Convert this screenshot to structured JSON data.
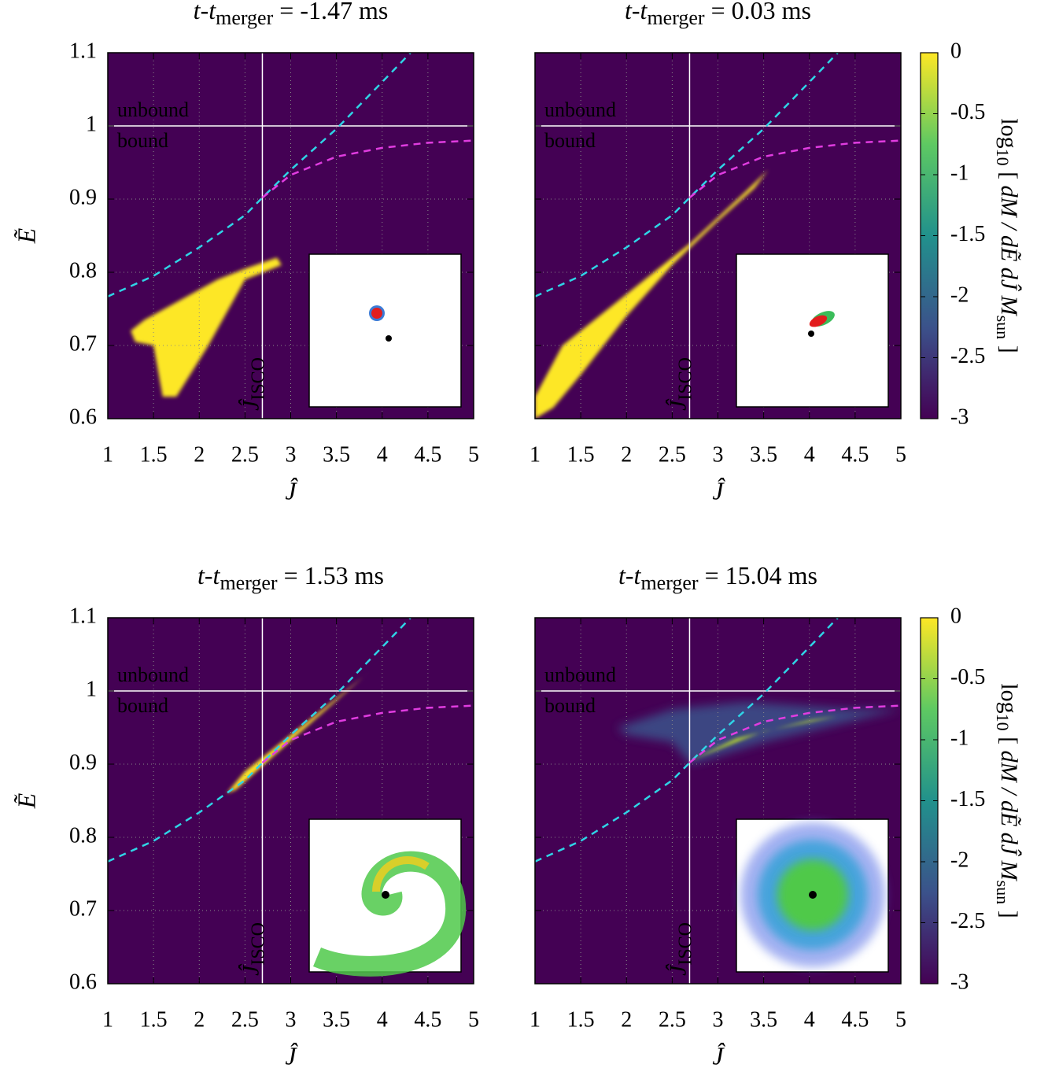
{
  "chart_data": [
    {
      "type": "heatmap",
      "title": [
        "t-t",
        "merger",
        " = -1.47 ms"
      ],
      "xlabel": "Ĵ",
      "ylabel": "Ẽ",
      "xlim": [
        1,
        5
      ],
      "ylim": [
        0.6,
        1.1
      ],
      "xticks": [
        1,
        1.5,
        2,
        2.5,
        3,
        3.5,
        4,
        4.5,
        5
      ],
      "yticks": [
        0.6,
        0.7,
        0.8,
        0.9,
        1,
        1.1
      ],
      "ytick_labels": true,
      "grid": true,
      "background": "#440154",
      "isco": 2.69,
      "isco_label": [
        "Ĵ",
        "ISCO"
      ],
      "unbound_level": 1,
      "unbound_label": "unbound",
      "bound_label": "bound",
      "series": [
        {
          "color": "#2fd4e6",
          "x": [
            1,
            1.5,
            2,
            2.5,
            2.69,
            3,
            3.5,
            4,
            4.31
          ],
          "values": [
            0.767,
            0.795,
            0.834,
            0.878,
            0.902,
            0.94,
            0.996,
            1.06,
            1.1
          ]
        },
        {
          "color": "#e03ce0",
          "x": [
            2.69,
            3,
            3.5,
            4,
            4.5,
            5
          ],
          "values": [
            0.902,
            0.933,
            0.958,
            0.97,
            0.977,
            0.98
          ]
        }
      ],
      "regions": [
        {
          "color": "#fde725",
          "x": [
            1.25,
            1.4,
            2.2,
            2.5,
            2.85,
            2.9,
            2.5,
            2.1,
            1.75,
            1.6,
            1.5,
            1.3
          ],
          "y": [
            0.72,
            0.735,
            0.79,
            0.805,
            0.82,
            0.81,
            0.79,
            0.7,
            0.63,
            0.63,
            0.7,
            0.705
          ]
        }
      ]
    },
    {
      "type": "heatmap",
      "title": [
        "t-t",
        "merger",
        " = 0.03 ms"
      ],
      "xlabel": "Ĵ",
      "xlim": [
        1,
        5
      ],
      "ylim": [
        0.6,
        1.1
      ],
      "xticks": [
        1,
        1.5,
        2,
        2.5,
        3,
        3.5,
        4,
        4.5,
        5
      ],
      "yticks": [
        0.6,
        0.7,
        0.8,
        0.9,
        1,
        1.1
      ],
      "ytick_labels": false,
      "grid": true,
      "background": "#440154",
      "isco": 2.69,
      "isco_label": [
        "Ĵ",
        "ISCO"
      ],
      "unbound_level": 1,
      "unbound_label": "unbound",
      "bound_label": "bound",
      "series": [
        {
          "color": "#2fd4e6",
          "x": [
            1,
            1.5,
            2,
            2.5,
            2.69,
            3,
            3.5,
            4,
            4.31
          ],
          "values": [
            0.767,
            0.795,
            0.834,
            0.878,
            0.902,
            0.94,
            0.996,
            1.06,
            1.1
          ]
        },
        {
          "color": "#e03ce0",
          "x": [
            2.69,
            3,
            3.5,
            4,
            4.5,
            5
          ],
          "values": [
            0.902,
            0.933,
            0.958,
            0.97,
            0.977,
            0.98
          ]
        }
      ],
      "regions": [
        {
          "color": "#fde725",
          "x": [
            1,
            1,
            1.3,
            2,
            2.7,
            3.3,
            3.55,
            3.4,
            3,
            2.5,
            2,
            1.5,
            1.2
          ],
          "y": [
            0.6,
            0.63,
            0.7,
            0.77,
            0.84,
            0.91,
            0.94,
            0.915,
            0.87,
            0.81,
            0.74,
            0.66,
            0.615
          ]
        }
      ],
      "colorbar": {
        "clim": [
          -3,
          0
        ],
        "cticks": [
          0,
          -0.5,
          -1,
          -1.5,
          -2,
          -2.5,
          -3
        ],
        "label": [
          "log",
          "10",
          " [ ",
          "dM / dẼ dĴ M",
          "sun",
          " ]"
        ],
        "colormap": [
          "#440154",
          "#3b528b",
          "#21918c",
          "#5ec962",
          "#fde725"
        ]
      }
    },
    {
      "type": "heatmap",
      "title": [
        "t-t",
        "merger",
        " = 1.53 ms"
      ],
      "xlabel": "Ĵ",
      "ylabel": "Ẽ",
      "xlim": [
        1,
        5
      ],
      "ylim": [
        0.6,
        1.1
      ],
      "xticks": [
        1,
        1.5,
        2,
        2.5,
        3,
        3.5,
        4,
        4.5,
        5
      ],
      "yticks": [
        0.6,
        0.7,
        0.8,
        0.9,
        1,
        1.1
      ],
      "ytick_labels": true,
      "grid": true,
      "background": "#440154",
      "isco": 2.69,
      "isco_label": [
        "Ĵ",
        "ISCO"
      ],
      "unbound_level": 1,
      "unbound_label": "unbound",
      "bound_label": "bound",
      "series": [
        {
          "color": "#2fd4e6",
          "x": [
            1,
            1.5,
            2,
            2.5,
            2.69,
            3,
            3.5,
            4,
            4.31
          ],
          "values": [
            0.767,
            0.795,
            0.834,
            0.878,
            0.902,
            0.94,
            0.996,
            1.06,
            1.1
          ]
        },
        {
          "color": "#e03ce0",
          "x": [
            2.69,
            3,
            3.5,
            4,
            4.5,
            5
          ],
          "values": [
            0.902,
            0.933,
            0.958,
            0.97,
            0.977,
            0.98
          ]
        }
      ],
      "regions": [
        {
          "color": "#fde725",
          "x": [
            2.3,
            2.5,
            3,
            3.5,
            3.9,
            3.8,
            3.3,
            2.8,
            2.4
          ],
          "y": [
            0.86,
            0.89,
            0.94,
            0.99,
            1.03,
            1.02,
            0.965,
            0.91,
            0.865
          ]
        }
      ]
    },
    {
      "type": "heatmap",
      "title": [
        "t-t",
        "merger",
        " = 15.04 ms"
      ],
      "xlabel": "Ĵ",
      "xlim": [
        1,
        5
      ],
      "ylim": [
        0.6,
        1.1
      ],
      "xticks": [
        1,
        1.5,
        2,
        2.5,
        3,
        3.5,
        4,
        4.5,
        5
      ],
      "yticks": [
        0.6,
        0.7,
        0.8,
        0.9,
        1,
        1.1
      ],
      "ytick_labels": false,
      "grid": true,
      "background": "#440154",
      "isco": 2.69,
      "isco_label": [
        "Ĵ",
        "ISCO"
      ],
      "unbound_level": 1,
      "unbound_label": "unbound",
      "bound_label": "bound",
      "series": [
        {
          "color": "#2fd4e6",
          "x": [
            1,
            1.5,
            2,
            2.5,
            2.69,
            3,
            3.5,
            4,
            4.31
          ],
          "values": [
            0.767,
            0.795,
            0.834,
            0.878,
            0.902,
            0.94,
            0.996,
            1.06,
            1.1
          ]
        },
        {
          "color": "#e03ce0",
          "x": [
            2.69,
            3,
            3.5,
            4,
            4.5,
            5
          ],
          "values": [
            0.902,
            0.933,
            0.958,
            0.97,
            0.977,
            0.98
          ]
        }
      ],
      "regions": [
        {
          "color": "#3b528b",
          "x": [
            1.9,
            2.5,
            3.3,
            4.5,
            5,
            4.5,
            3.5,
            2.7,
            2.5,
            2
          ],
          "y": [
            0.95,
            0.975,
            0.985,
            0.975,
            0.975,
            0.96,
            0.93,
            0.9,
            0.93,
            0.94
          ]
        },
        {
          "color": "#bddf26",
          "x": [
            2.7,
            3.2,
            4,
            4.3,
            3.5,
            2.9
          ],
          "y": [
            0.905,
            0.935,
            0.96,
            0.965,
            0.945,
            0.915
          ]
        }
      ],
      "colorbar": {
        "clim": [
          -3,
          0
        ],
        "cticks": [
          0,
          -0.5,
          -1,
          -1.5,
          -2,
          -2.5,
          -3
        ],
        "label": [
          "log",
          "10",
          " [ ",
          "dM / dẼ dĴ M",
          "sun",
          " ]"
        ],
        "colormap": [
          "#440154",
          "#3b528b",
          "#21918c",
          "#5ec962",
          "#fde725"
        ]
      }
    }
  ]
}
